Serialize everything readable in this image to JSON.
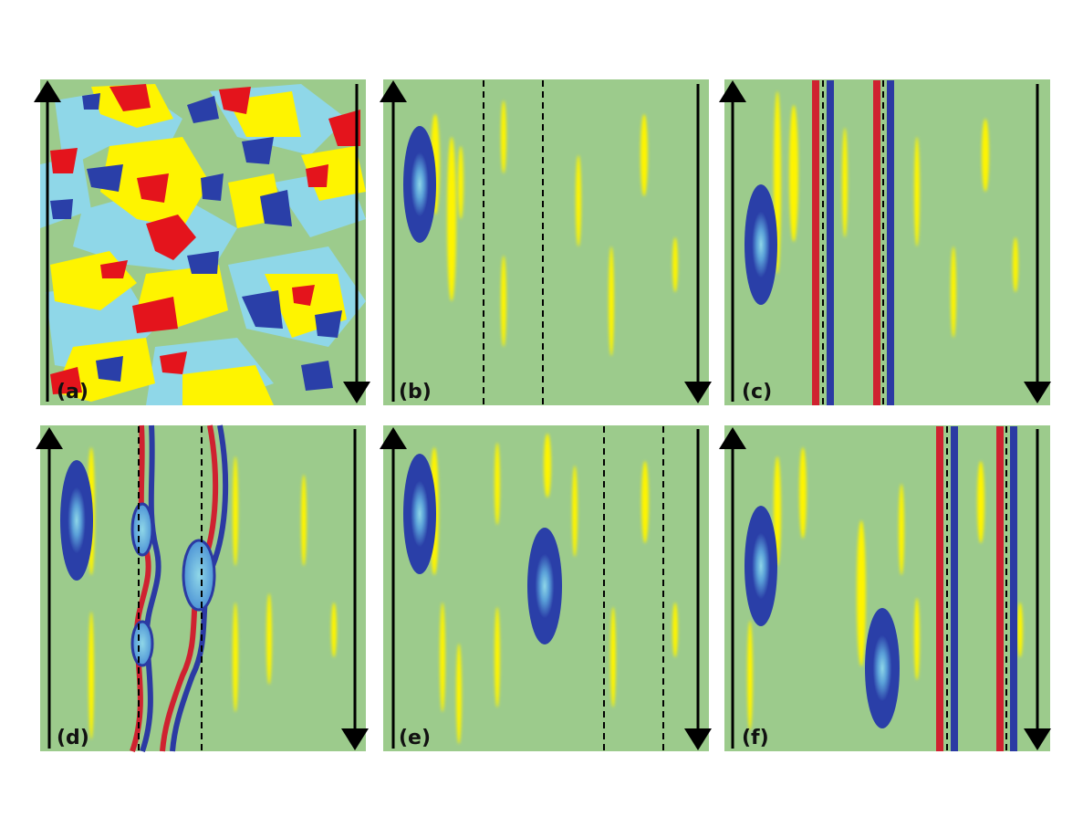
{
  "figure": {
    "panels": [
      {
        "id": "a",
        "label": "(a)",
        "kind": "turbulent-field"
      },
      {
        "id": "b",
        "label": "(b)",
        "kind": "single-vortex-dashed-lines"
      },
      {
        "id": "c",
        "label": "(c)",
        "kind": "single-vortex-straight-fronts"
      },
      {
        "id": "d",
        "label": "(d)",
        "kind": "vortex-with-wavy-fronts-and-bubbles"
      },
      {
        "id": "e",
        "label": "(e)",
        "kind": "two-vortices-dashed-lines"
      },
      {
        "id": "f",
        "label": "(f)",
        "kind": "two-vortices-straight-fronts"
      }
    ],
    "colors": {
      "background": "#9ccb8c",
      "positive_weak": "#fef400",
      "positive_strong": "#e4141c",
      "negative_weak": "#8fd7e8",
      "negative_strong": "#2a3fa8",
      "front_red": "#cf2230",
      "front_blue": "#2b3aa3",
      "arrow": "#000000"
    },
    "icons": [
      "up-arrow-icon",
      "down-arrow-icon",
      "dashed-line",
      "vortex"
    ]
  }
}
